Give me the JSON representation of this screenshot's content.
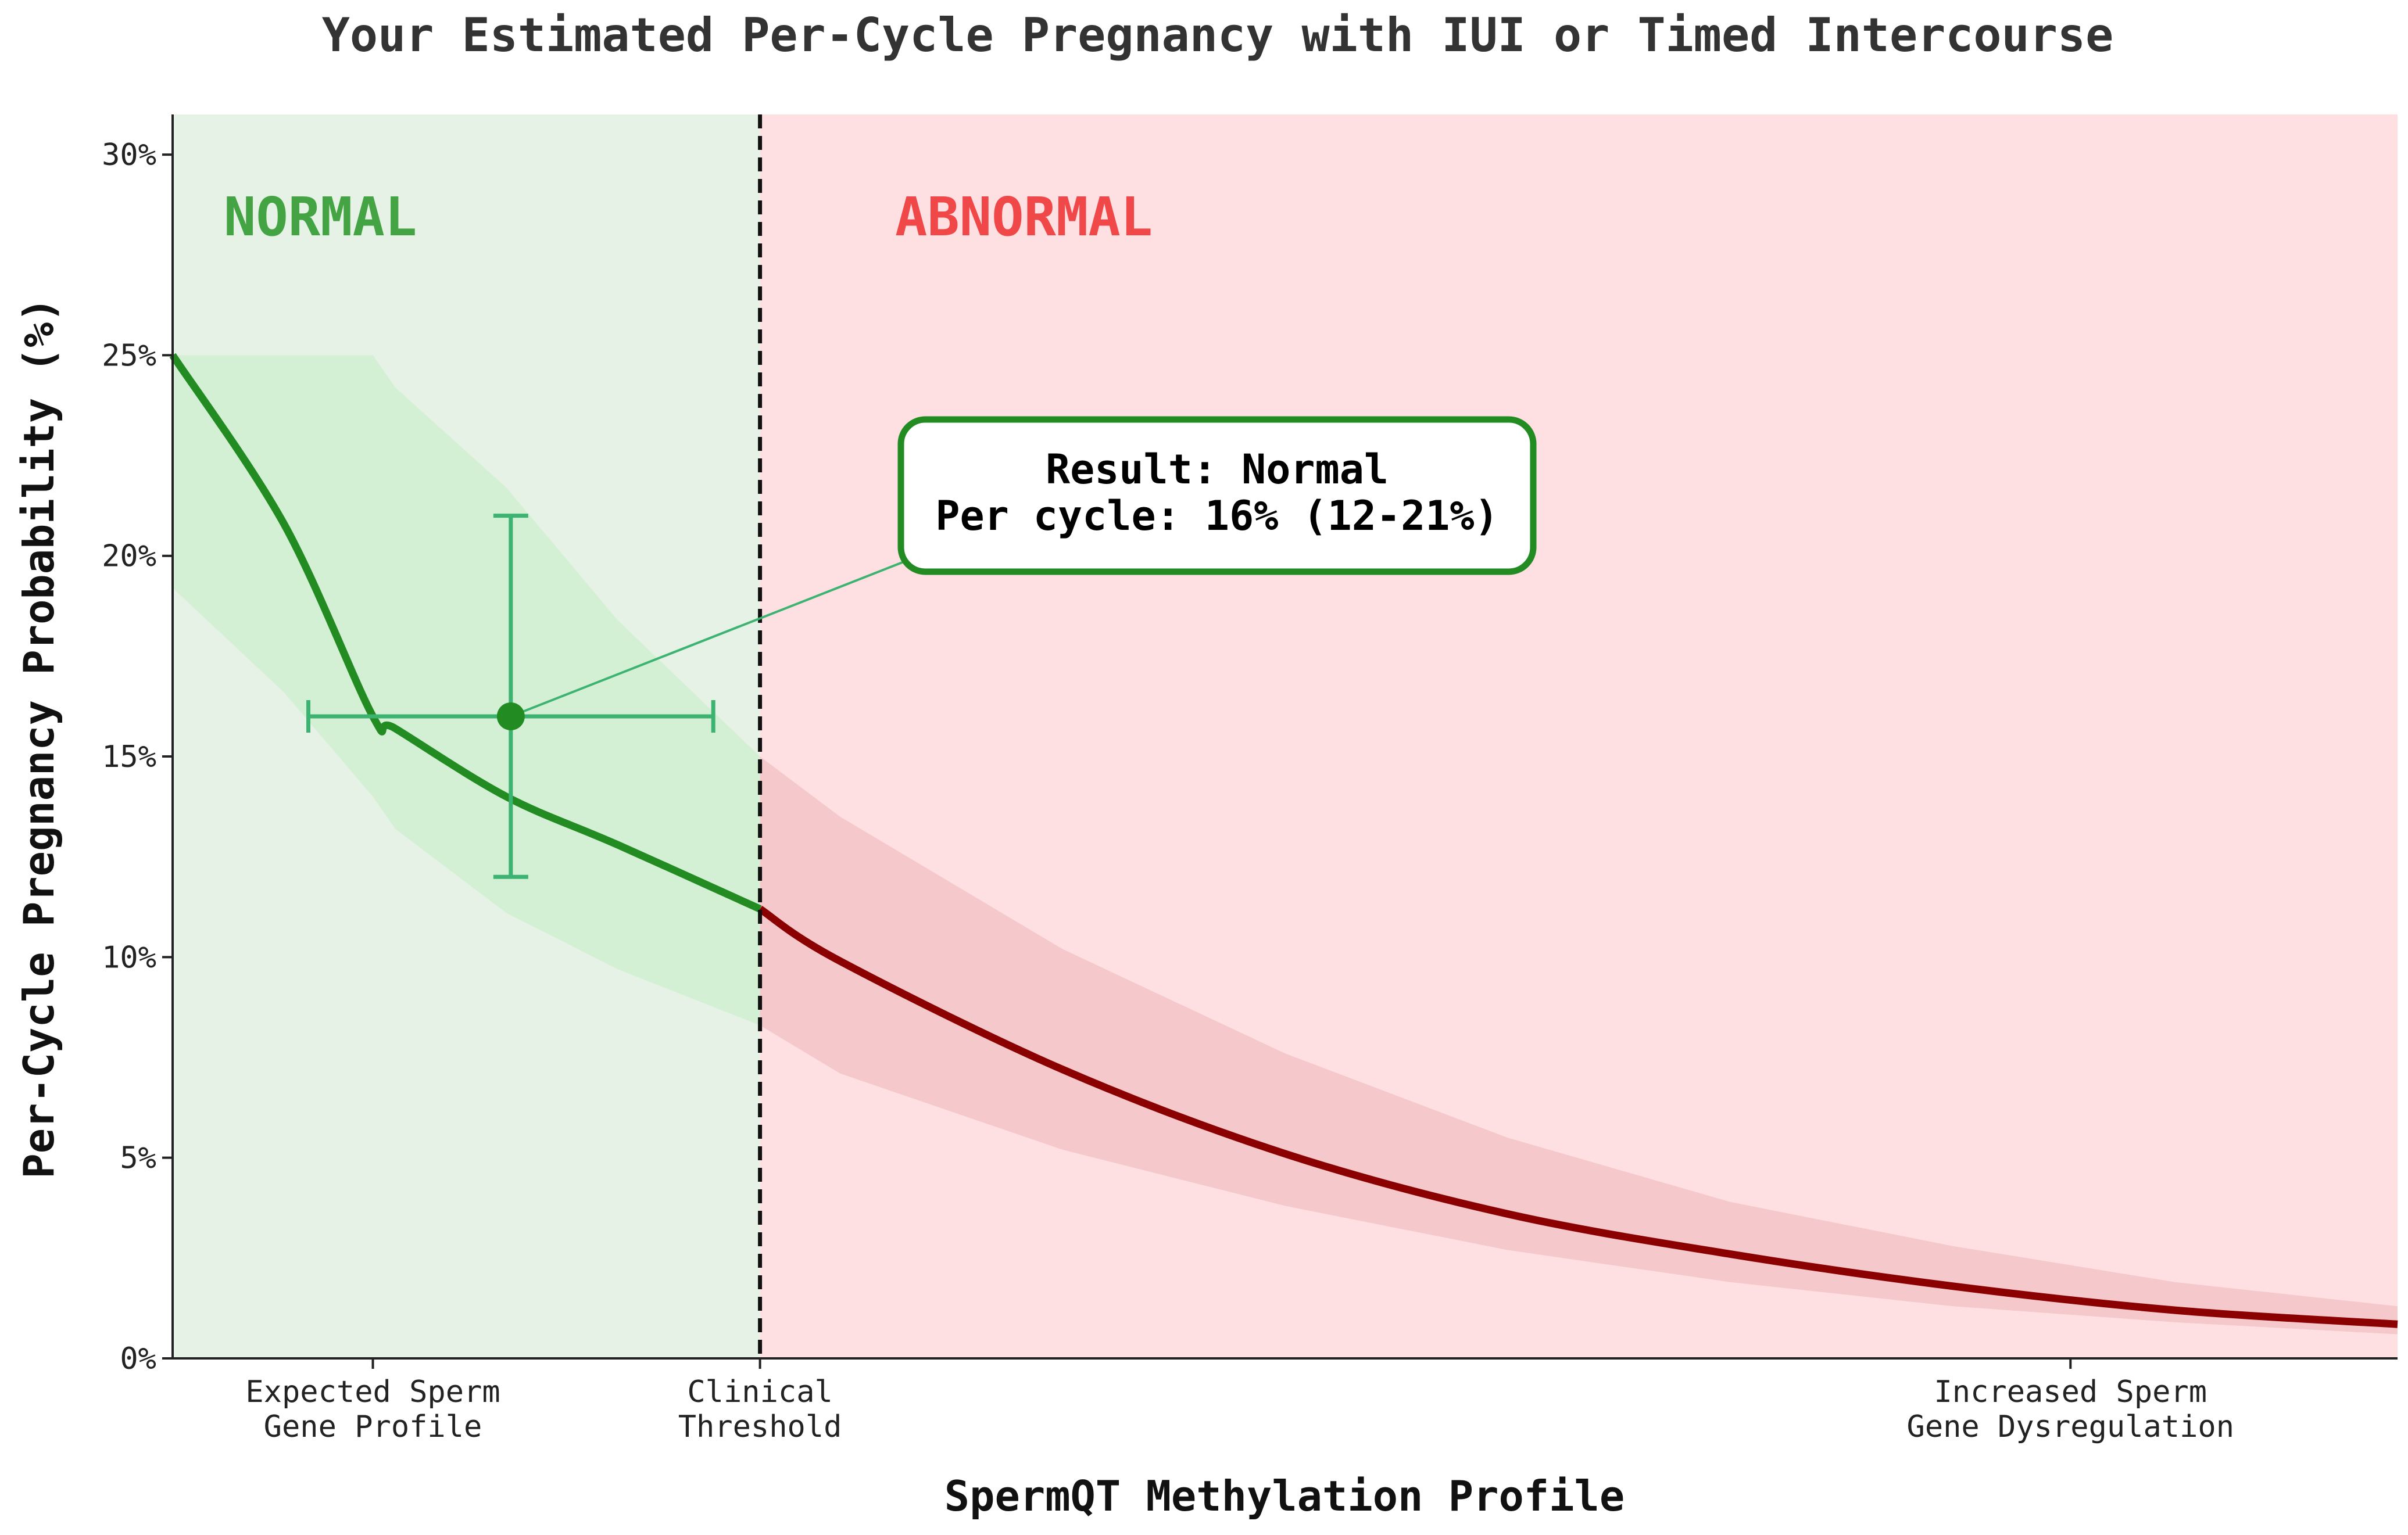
{
  "chart_data": {
    "type": "line",
    "title": "Your Estimated Per-Cycle Pregnancy with IUI or Timed Intercourse",
    "xlabel": "SpermQT Methylation Profile",
    "ylabel": "Per-Cycle Pregnancy Probability (%)",
    "xlim": [
      0,
      100
    ],
    "ylim": [
      0,
      31
    ],
    "y_ticks": [
      0,
      5,
      10,
      15,
      20,
      25,
      30
    ],
    "y_tick_labels": [
      "0%",
      "5%",
      "10%",
      "15%",
      "20%",
      "25%",
      "30%"
    ],
    "x_ticks": [
      {
        "x": 9,
        "line1": "Expected Sperm",
        "line2": "Gene Profile"
      },
      {
        "x": 26.4,
        "line1": "Clinical",
        "line2": "Threshold"
      },
      {
        "x": 85.3,
        "line1": "Increased Sperm",
        "line2": "Gene Dysregulation"
      }
    ],
    "threshold_x": 26.4,
    "regions": [
      {
        "label": "NORMAL",
        "x_from": 0,
        "x_to": 26.4,
        "color": "#e6f2e6",
        "label_color": "#44a444"
      },
      {
        "label": "ABNORMAL",
        "x_from": 26.4,
        "x_to": 100,
        "color": "#ffe0e2",
        "label_color": "#f04848"
      }
    ],
    "curve": {
      "x": [
        0,
        5,
        9,
        10,
        15,
        20,
        26.4,
        30,
        40,
        50,
        60,
        70,
        80,
        90,
        100
      ],
      "y": [
        25.0,
        20.8,
        16.0,
        15.7,
        14.0,
        12.8,
        11.2,
        9.9,
        7.2,
        5.1,
        3.6,
        2.6,
        1.8,
        1.2,
        0.85
      ],
      "y_low": [
        19.2,
        16.6,
        14.0,
        13.2,
        11.1,
        9.7,
        8.3,
        7.1,
        5.2,
        3.8,
        2.7,
        1.9,
        1.3,
        0.9,
        0.6
      ],
      "y_high": [
        25.0,
        25.0,
        25.0,
        24.2,
        21.7,
        18.4,
        15.0,
        13.5,
        10.2,
        7.6,
        5.5,
        3.9,
        2.8,
        1.9,
        1.3
      ],
      "normal_color": "#228b22",
      "abnormal_color": "#8b0000",
      "normal_band_color": "#d4f0d4",
      "abnormal_band_color": "#f5c8cb"
    },
    "result_point": {
      "x": 15.2,
      "y": 16,
      "y_low": 12,
      "y_high": 21,
      "x_low": 6.1,
      "x_high": 24.3,
      "color": "#228b22",
      "errorbar_color": "#3cb371"
    },
    "annotation": {
      "line1": "Result:  Normal",
      "line2": "Per cycle: 16% (12-21%)",
      "border_color": "#228b22"
    }
  }
}
